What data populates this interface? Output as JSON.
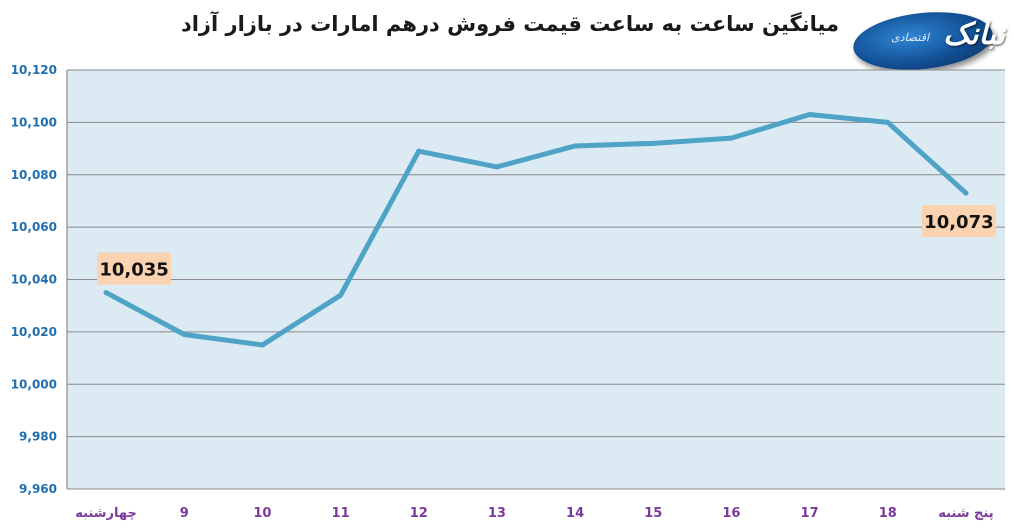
{
  "chart_data": {
    "type": "line",
    "title": "میانگین ساعت به ساعت قیمت فروش درهم امارات در بازار آزاد",
    "xlabel": "",
    "ylabel": "",
    "categories": [
      "چهارشنبه",
      "9",
      "10",
      "11",
      "12",
      "13",
      "14",
      "15",
      "16",
      "17",
      "18",
      "پنج شنبه"
    ],
    "y_tick_labels": [
      "9,960",
      "9,980",
      "10,000",
      "10,020",
      "10,040",
      "10,060",
      "10,080",
      "10,100",
      "10,120"
    ],
    "ylim": [
      9960,
      10120
    ],
    "series": [
      {
        "values": [
          10035,
          10019,
          10015,
          10034,
          10089,
          10083,
          10091,
          10092,
          10094,
          10103,
          10100,
          10073
        ]
      }
    ],
    "data_labels": [
      {
        "index": 0,
        "text": "10,035"
      },
      {
        "index": 11,
        "text": "10,073"
      }
    ],
    "grid": true,
    "legend": "none",
    "colors": {
      "line": "#4fa3c7",
      "plot_bg": "#dbeaf3",
      "grid": "#8a8a8a",
      "label_bg": "#fbd3b0",
      "y_tick": "#1f6fb0",
      "x_tick": "#7a3a9a"
    }
  },
  "logo": {
    "text": "نبانک",
    "subtitle": "اقتصادی"
  }
}
